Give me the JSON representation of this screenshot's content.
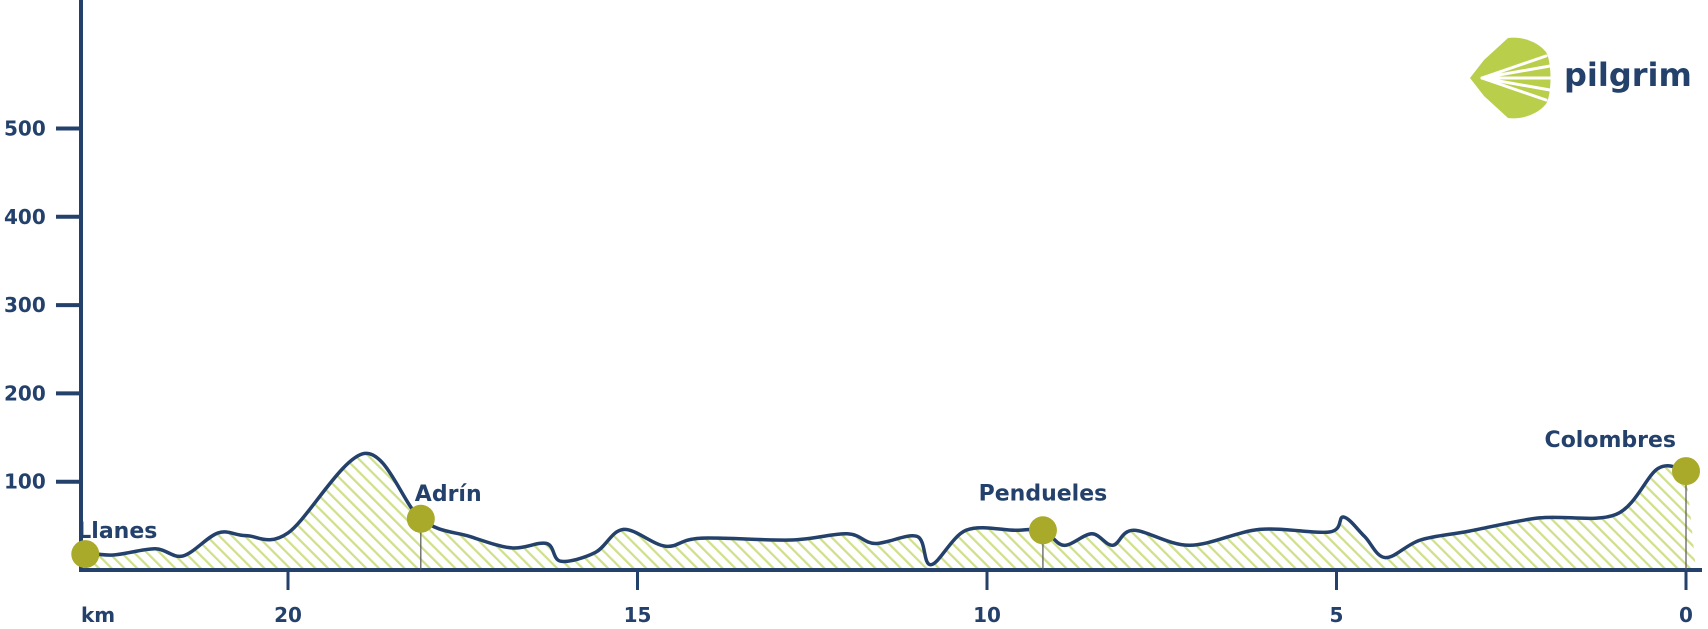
{
  "logo": {
    "text": "pilgrim",
    "icon": "scallop-shell-icon"
  },
  "colors": {
    "line": "#23416b",
    "marker": "#a9a92a",
    "fill": "#cfe08a",
    "shell": "#b9cf4c"
  },
  "chart_data": {
    "type": "area",
    "title": "",
    "xlabel": "km",
    "ylabel": "",
    "x_reversed": true,
    "xlim": [
      22.9,
      0
    ],
    "ylim": [
      0,
      640
    ],
    "xticks": [
      20,
      15,
      10,
      5,
      0
    ],
    "yticks": [
      100,
      200,
      300,
      400,
      500
    ],
    "profile": [
      [
        22.9,
        20
      ],
      [
        22.5,
        17
      ],
      [
        21.9,
        24
      ],
      [
        21.5,
        16
      ],
      [
        21.0,
        42
      ],
      [
        20.6,
        39
      ],
      [
        20.0,
        42
      ],
      [
        18.9,
        132
      ],
      [
        18.1,
        58
      ],
      [
        17.4,
        38
      ],
      [
        16.8,
        25
      ],
      [
        16.3,
        30
      ],
      [
        16.1,
        10
      ],
      [
        15.6,
        20
      ],
      [
        15.2,
        46
      ],
      [
        14.6,
        27
      ],
      [
        14.1,
        36
      ],
      [
        12.8,
        34
      ],
      [
        12.0,
        41
      ],
      [
        11.6,
        30
      ],
      [
        11.0,
        38
      ],
      [
        10.8,
        6
      ],
      [
        10.3,
        45
      ],
      [
        9.6,
        45
      ],
      [
        9.2,
        45
      ],
      [
        8.9,
        28
      ],
      [
        8.5,
        41
      ],
      [
        8.2,
        28
      ],
      [
        7.9,
        45
      ],
      [
        7.1,
        28
      ],
      [
        6.1,
        46
      ],
      [
        5.1,
        43
      ],
      [
        4.9,
        60
      ],
      [
        4.6,
        38
      ],
      [
        4.3,
        14
      ],
      [
        3.8,
        34
      ],
      [
        3.1,
        44
      ],
      [
        2.1,
        59
      ],
      [
        1.0,
        63
      ],
      [
        0.4,
        115
      ],
      [
        0.0,
        112
      ]
    ],
    "waypoints": [
      {
        "name": "Llanes",
        "km": 22.9,
        "elevation": 18
      },
      {
        "name": "Adrín",
        "km": 18.1,
        "elevation": 58
      },
      {
        "name": "Pendueles",
        "km": 9.2,
        "elevation": 45
      },
      {
        "name": "Colombres",
        "km": 0.0,
        "elevation": 112
      }
    ]
  }
}
